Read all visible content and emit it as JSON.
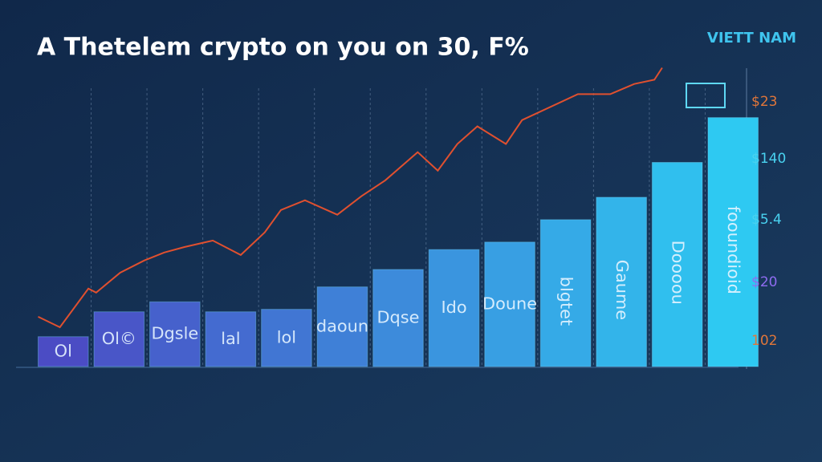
{
  "chart_data": {
    "type": "bar",
    "title": "A Thetelem crypto on you on 30, F%",
    "badge": "VIETT NAM",
    "categories": [
      "Ol",
      "Ol©",
      "Dgsle",
      "lal",
      "lol",
      "daoun",
      "Dqse",
      "Ido",
      "Doune",
      "blgtet",
      "Gaume",
      "Doooou",
      "fooundioid"
    ],
    "values": [
      12,
      22,
      26,
      22,
      23,
      32,
      39,
      47,
      50,
      59,
      68,
      82,
      100
    ],
    "bar_color_start": "#4b4cc4",
    "bar_color_end": "#2ec9f2",
    "ylim": [
      0,
      125
    ],
    "xlim": [
      -0.5,
      12.5
    ],
    "line": {
      "color": "#e0502f",
      "x": [
        -0.45,
        -0.06,
        0.45,
        0.59,
        1.02,
        1.45,
        1.81,
        2.17,
        2.68,
        3.18,
        3.61,
        3.9,
        4.33,
        4.91,
        5.34,
        5.77,
        6.35,
        6.71,
        7.06,
        7.42,
        7.93,
        8.22,
        9.22,
        9.8,
        10.23,
        10.59,
        10.73
      ],
      "values": [
        20,
        15.8,
        31.3,
        29.7,
        37.7,
        42.6,
        45.8,
        48,
        50.6,
        44.8,
        53.9,
        62.9,
        66.8,
        61,
        68.4,
        74.8,
        86.1,
        78.7,
        89.4,
        96.5,
        89.4,
        99,
        109.4,
        109.4,
        113.5,
        115.2,
        120
      ]
    },
    "right_labels": [
      {
        "text": "$23",
        "color": "#e0763a"
      },
      {
        "text": "$140",
        "color": "#49d2f0"
      },
      {
        "text": "$5.4",
        "color": "#49d2f0"
      },
      {
        "text": "$20",
        "color": "#8f6cf0"
      },
      {
        "text": "102",
        "color": "#e0763a"
      }
    ]
  }
}
